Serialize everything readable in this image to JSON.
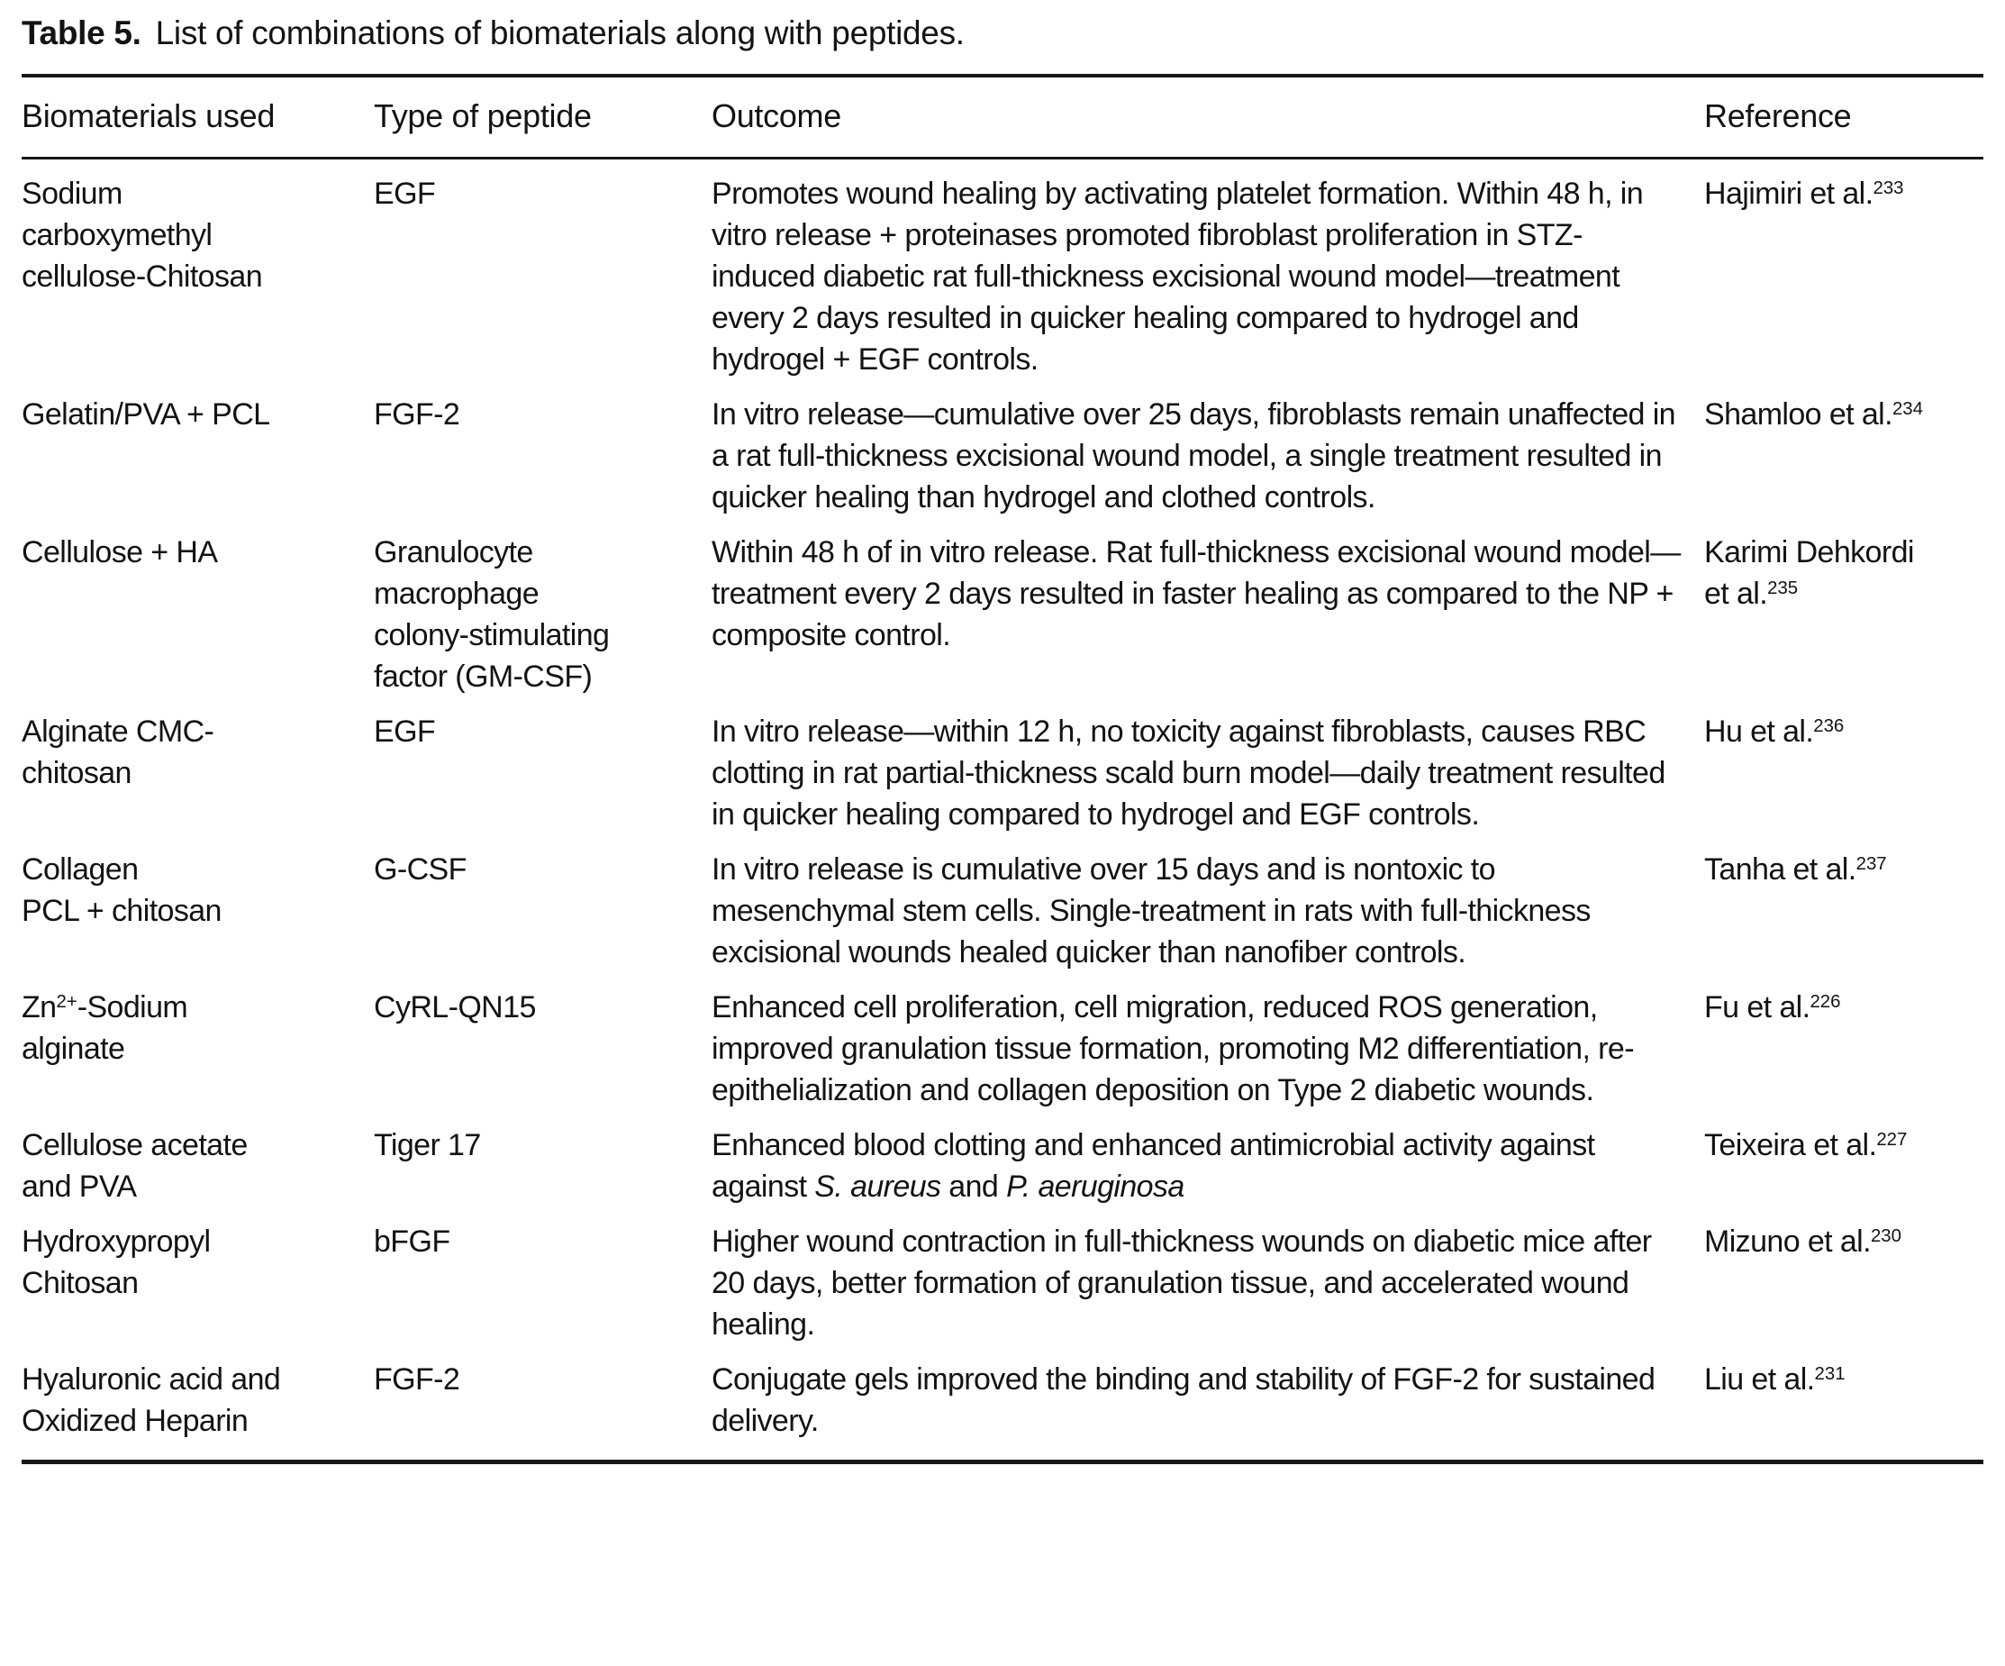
{
  "page": {
    "caption_label": "Table 5.",
    "caption_text": "List of combinations of biomaterials along with peptides."
  },
  "colors": {
    "text": "#131313",
    "background": "#ffffff",
    "rule": "#161616"
  },
  "table": {
    "columns": [
      "Biomaterials used",
      "Type of peptide",
      "Outcome",
      "Reference"
    ],
    "rows": [
      {
        "biomaterial": [
          {
            "t": "Sodium\ncarboxymethyl\ncellulose-Chitosan"
          }
        ],
        "peptide": [
          {
            "t": "EGF"
          }
        ],
        "outcome": [
          {
            "t": "Promotes wound healing by activating platelet formation. Within 48 h, in vitro release + proteinases promoted fibroblast proliferation in STZ-induced diabetic rat full-thickness excisional wound model—treatment every 2 days resulted in quicker healing compared to hydrogel and hydrogel + EGF controls."
          }
        ],
        "reference": [
          {
            "t": "Hajimiri et al."
          },
          {
            "t": "233",
            "sup": true
          }
        ]
      },
      {
        "biomaterial": [
          {
            "t": "Gelatin/PVA + PCL"
          }
        ],
        "peptide": [
          {
            "t": "FGF-2"
          }
        ],
        "outcome": [
          {
            "t": "In vitro release—cumulative over 25 days, fibroblasts remain unaffected in a rat full-thickness excisional wound model, a single treatment resulted in quicker healing than hydrogel and clothed controls."
          }
        ],
        "reference": [
          {
            "t": "Shamloo et al."
          },
          {
            "t": "234",
            "sup": true
          }
        ]
      },
      {
        "biomaterial": [
          {
            "t": "Cellulose + HA"
          }
        ],
        "peptide": [
          {
            "t": "Granulocyte\nmacrophage\ncolony-stimulating\nfactor (GM-CSF)"
          }
        ],
        "outcome": [
          {
            "t": "Within 48 h of in vitro release. Rat full-thickness excisional wound model—treatment every 2 days resulted in faster healing as compared to the NP + composite control."
          }
        ],
        "reference": [
          {
            "t": "Karimi Dehkordi\net al."
          },
          {
            "t": "235",
            "sup": true
          }
        ]
      },
      {
        "biomaterial": [
          {
            "t": "Alginate CMC-\nchitosan"
          }
        ],
        "peptide": [
          {
            "t": "EGF"
          }
        ],
        "outcome": [
          {
            "t": "In vitro release—within 12 h, no toxicity against fibroblasts, causes RBC clotting in rat partial-thickness scald burn model—daily treatment resulted in quicker healing compared to hydrogel and EGF controls."
          }
        ],
        "reference": [
          {
            "t": "Hu et al."
          },
          {
            "t": "236",
            "sup": true
          }
        ]
      },
      {
        "biomaterial": [
          {
            "t": "Collagen\nPCL + chitosan"
          }
        ],
        "peptide": [
          {
            "t": "G-CSF"
          }
        ],
        "outcome": [
          {
            "t": "In vitro release is cumulative over 15 days and is nontoxic to mesenchymal stem cells. Single-treatment in rats with full-thickness excisional wounds healed quicker than nanofiber controls."
          }
        ],
        "reference": [
          {
            "t": "Tanha et al."
          },
          {
            "t": "237",
            "sup": true
          }
        ]
      },
      {
        "biomaterial": [
          {
            "t": "Zn"
          },
          {
            "t": "2+",
            "sup": true
          },
          {
            "t": "-Sodium\nalginate"
          }
        ],
        "peptide": [
          {
            "t": "CyRL-QN15"
          }
        ],
        "outcome": [
          {
            "t": "Enhanced cell proliferation, cell migration, reduced ROS generation, improved granulation tissue formation, promoting M2 differentiation, re-epithelialization and collagen deposition on Type 2 diabetic wounds."
          }
        ],
        "reference": [
          {
            "t": "Fu et al."
          },
          {
            "t": "226",
            "sup": true
          }
        ]
      },
      {
        "biomaterial": [
          {
            "t": "Cellulose acetate\nand PVA"
          }
        ],
        "peptide": [
          {
            "t": "Tiger 17"
          }
        ],
        "outcome": [
          {
            "t": "Enhanced blood clotting and enhanced antimicrobial activity against against "
          },
          {
            "t": "S. aureus",
            "i": true
          },
          {
            "t": " and "
          },
          {
            "t": "P. aeruginosa",
            "i": true
          }
        ],
        "reference": [
          {
            "t": "Teixeira et al."
          },
          {
            "t": "227",
            "sup": true
          }
        ]
      },
      {
        "biomaterial": [
          {
            "t": "Hydroxypropyl\nChitosan"
          }
        ],
        "peptide": [
          {
            "t": "bFGF"
          }
        ],
        "outcome": [
          {
            "t": "Higher wound contraction in full-thickness wounds on diabetic mice after 20 days, better formation of granulation tissue, and accelerated wound healing."
          }
        ],
        "reference": [
          {
            "t": "Mizuno et al."
          },
          {
            "t": "230",
            "sup": true
          }
        ]
      },
      {
        "biomaterial": [
          {
            "t": "Hyaluronic acid and\nOxidized Heparin"
          }
        ],
        "peptide": [
          {
            "t": "FGF-2"
          }
        ],
        "outcome": [
          {
            "t": "Conjugate gels improved the binding and stability of FGF-2 for sustained delivery."
          }
        ],
        "reference": [
          {
            "t": "Liu et al."
          },
          {
            "t": "231",
            "sup": true
          }
        ]
      }
    ]
  }
}
